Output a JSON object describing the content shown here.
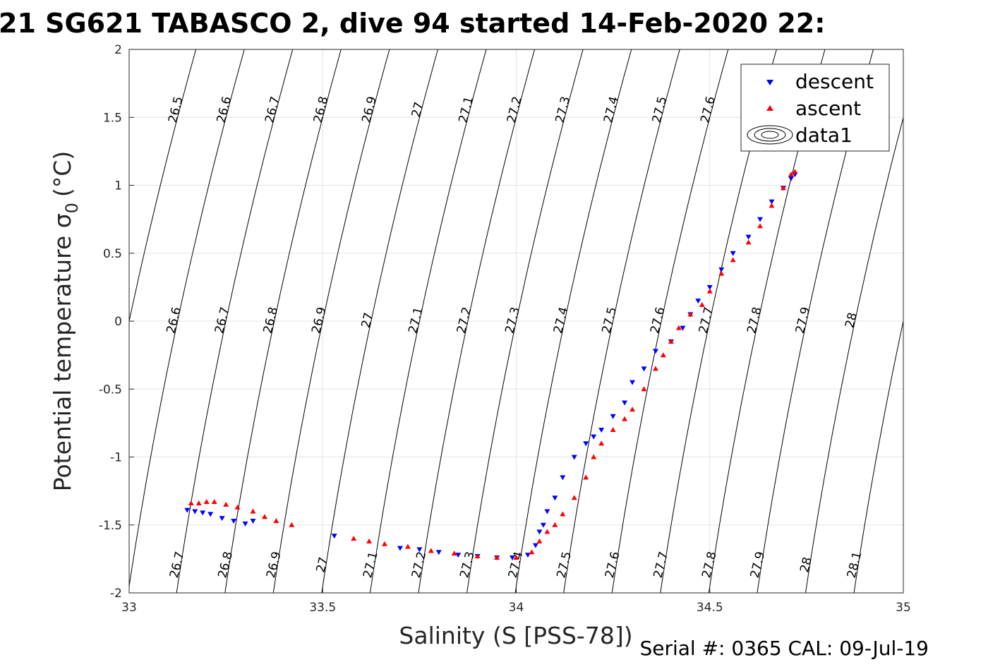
{
  "chart_data": {
    "type": "scatter",
    "title": "21 SG621 TABASCO 2, dive 94 started 14-Feb-2020 22:",
    "xlabel": "Salinity (S [PSS-78])",
    "ylabel": "Potential temperature σ",
    "ylabel_subscript": "0",
    "ylabel_unit": "(°C)",
    "xlim": [
      33,
      35
    ],
    "ylim": [
      -2,
      2
    ],
    "x_ticks": [
      33,
      33.5,
      34,
      34.5,
      35
    ],
    "x_tick_labels": [
      "33",
      "33.5",
      "34",
      "34.5",
      "35"
    ],
    "y_ticks": [
      -2,
      -1.5,
      -1,
      -0.5,
      0,
      0.5,
      1,
      1.5,
      2
    ],
    "y_tick_labels": [
      "-2",
      "-1.5",
      "-1",
      "-0.5",
      "0",
      "0.5",
      "1",
      "1.5",
      "2"
    ],
    "grid": true,
    "legend_position": "top-right",
    "series": [
      {
        "name": "descent",
        "color": "#0000ff",
        "marker": "triangle-down",
        "points": [
          [
            33.15,
            -1.39
          ],
          [
            33.17,
            -1.4
          ],
          [
            33.19,
            -1.41
          ],
          [
            33.21,
            -1.42
          ],
          [
            33.24,
            -1.45
          ],
          [
            33.27,
            -1.47
          ],
          [
            33.3,
            -1.49
          ],
          [
            33.32,
            -1.47
          ],
          [
            33.53,
            -1.58
          ],
          [
            33.7,
            -1.67
          ],
          [
            33.75,
            -1.68
          ],
          [
            33.8,
            -1.7
          ],
          [
            33.85,
            -1.72
          ],
          [
            33.9,
            -1.73
          ],
          [
            33.95,
            -1.74
          ],
          [
            33.99,
            -1.74
          ],
          [
            34.03,
            -1.72
          ],
          [
            34.05,
            -1.65
          ],
          [
            34.06,
            -1.55
          ],
          [
            34.07,
            -1.5
          ],
          [
            34.08,
            -1.4
          ],
          [
            34.1,
            -1.3
          ],
          [
            34.12,
            -1.15
          ],
          [
            34.15,
            -1.0
          ],
          [
            34.18,
            -0.9
          ],
          [
            34.2,
            -0.85
          ],
          [
            34.22,
            -0.8
          ],
          [
            34.25,
            -0.7
          ],
          [
            34.28,
            -0.6
          ],
          [
            34.3,
            -0.45
          ],
          [
            34.33,
            -0.35
          ],
          [
            34.36,
            -0.22
          ],
          [
            34.4,
            -0.15
          ],
          [
            34.43,
            -0.05
          ],
          [
            34.45,
            0.05
          ],
          [
            34.47,
            0.15
          ],
          [
            34.5,
            0.25
          ],
          [
            34.53,
            0.38
          ],
          [
            34.56,
            0.5
          ],
          [
            34.6,
            0.62
          ],
          [
            34.63,
            0.75
          ],
          [
            34.66,
            0.88
          ],
          [
            34.69,
            0.98
          ],
          [
            34.71,
            1.05
          ],
          [
            34.72,
            1.08
          ]
        ]
      },
      {
        "name": "ascent",
        "color": "#ff0000",
        "marker": "triangle-up",
        "points": [
          [
            33.16,
            -1.34
          ],
          [
            33.18,
            -1.34
          ],
          [
            33.2,
            -1.33
          ],
          [
            33.22,
            -1.33
          ],
          [
            33.25,
            -1.35
          ],
          [
            33.28,
            -1.37
          ],
          [
            33.32,
            -1.4
          ],
          [
            33.35,
            -1.44
          ],
          [
            33.38,
            -1.47
          ],
          [
            33.42,
            -1.5
          ],
          [
            33.58,
            -1.6
          ],
          [
            33.62,
            -1.62
          ],
          [
            33.66,
            -1.64
          ],
          [
            33.72,
            -1.66
          ],
          [
            33.78,
            -1.69
          ],
          [
            33.84,
            -1.71
          ],
          [
            33.9,
            -1.73
          ],
          [
            33.95,
            -1.74
          ],
          [
            34.0,
            -1.74
          ],
          [
            34.04,
            -1.7
          ],
          [
            34.06,
            -1.62
          ],
          [
            34.08,
            -1.55
          ],
          [
            34.1,
            -1.5
          ],
          [
            34.12,
            -1.42
          ],
          [
            34.15,
            -1.3
          ],
          [
            34.18,
            -1.15
          ],
          [
            34.2,
            -1.0
          ],
          [
            34.22,
            -0.9
          ],
          [
            34.25,
            -0.8
          ],
          [
            34.28,
            -0.72
          ],
          [
            34.3,
            -0.65
          ],
          [
            34.33,
            -0.5
          ],
          [
            34.36,
            -0.35
          ],
          [
            34.38,
            -0.25
          ],
          [
            34.4,
            -0.15
          ],
          [
            34.42,
            -0.05
          ],
          [
            34.45,
            0.05
          ],
          [
            34.48,
            0.12
          ],
          [
            34.5,
            0.22
          ],
          [
            34.53,
            0.35
          ],
          [
            34.56,
            0.45
          ],
          [
            34.6,
            0.58
          ],
          [
            34.63,
            0.7
          ],
          [
            34.66,
            0.85
          ],
          [
            34.69,
            0.98
          ],
          [
            34.71,
            1.08
          ],
          [
            34.72,
            1.1
          ]
        ]
      }
    ],
    "contours": {
      "legend_name": "data1",
      "color": "#000000",
      "levels": [
        26.5,
        26.6,
        26.7,
        26.8,
        26.9,
        27,
        27.1,
        27.2,
        27.3,
        27.4,
        27.5,
        27.6,
        27.7,
        27.8,
        27.9,
        28,
        28.1
      ],
      "level_labels": [
        "26.5",
        "26.6",
        "26.7",
        "26.8",
        "26.9",
        "27",
        "27.1",
        "27.2",
        "27.3",
        "27.4",
        "27.5",
        "27.6",
        "27.7",
        "27.8",
        "27.9",
        "28",
        "28.1"
      ]
    }
  },
  "footer": "Serial #: 0365  CAL: 09-Jul-19"
}
